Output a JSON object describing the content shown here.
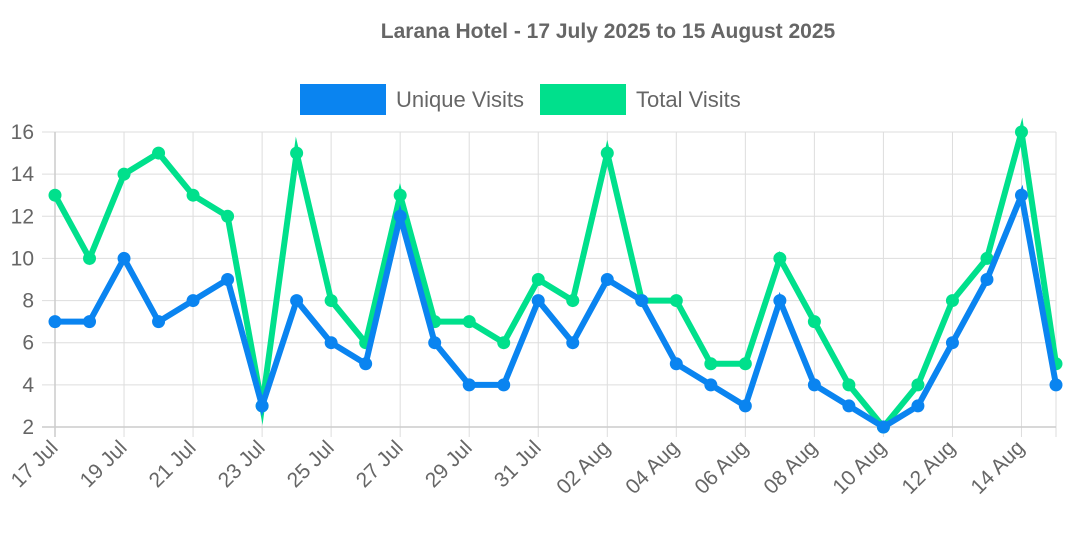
{
  "chart_data": {
    "type": "line",
    "title": "Larana Hotel - 17 July 2025 to 15 August 2025",
    "xlabel": "",
    "ylabel": "",
    "ylim": [
      2,
      16
    ],
    "yticks": [
      2,
      4,
      6,
      8,
      10,
      12,
      14,
      16
    ],
    "grid": true,
    "legend_position": "top",
    "x_tick_labels": [
      "17 Jul",
      "19 Jul",
      "21 Jul",
      "23 Jul",
      "25 Jul",
      "27 Jul",
      "29 Jul",
      "31 Jul",
      "02 Aug",
      "04 Aug",
      "06 Aug",
      "08 Aug",
      "10 Aug",
      "12 Aug",
      "14 Aug"
    ],
    "x": [
      "17 Jul",
      "18 Jul",
      "19 Jul",
      "20 Jul",
      "21 Jul",
      "22 Jul",
      "23 Jul",
      "24 Jul",
      "25 Jul",
      "26 Jul",
      "27 Jul",
      "28 Jul",
      "29 Jul",
      "30 Jul",
      "31 Jul",
      "01 Aug",
      "02 Aug",
      "03 Aug",
      "04 Aug",
      "05 Aug",
      "06 Aug",
      "07 Aug",
      "08 Aug",
      "09 Aug",
      "10 Aug",
      "11 Aug",
      "12 Aug",
      "13 Aug",
      "14 Aug",
      "15 Aug"
    ],
    "series": [
      {
        "name": "Unique Visits",
        "color": "#0A84F0",
        "values": [
          7,
          7,
          10,
          7,
          8,
          9,
          3,
          8,
          6,
          5,
          12,
          6,
          4,
          4,
          8,
          6,
          9,
          8,
          5,
          4,
          3,
          8,
          4,
          3,
          2,
          3,
          6,
          9,
          13,
          4
        ]
      },
      {
        "name": "Total Visits",
        "color": "#00E08C",
        "values": [
          13,
          10,
          14,
          15,
          13,
          12,
          3,
          15,
          8,
          6,
          13,
          7,
          7,
          6,
          9,
          8,
          15,
          8,
          8,
          5,
          5,
          10,
          7,
          4,
          2,
          4,
          8,
          10,
          16,
          5
        ]
      }
    ]
  }
}
